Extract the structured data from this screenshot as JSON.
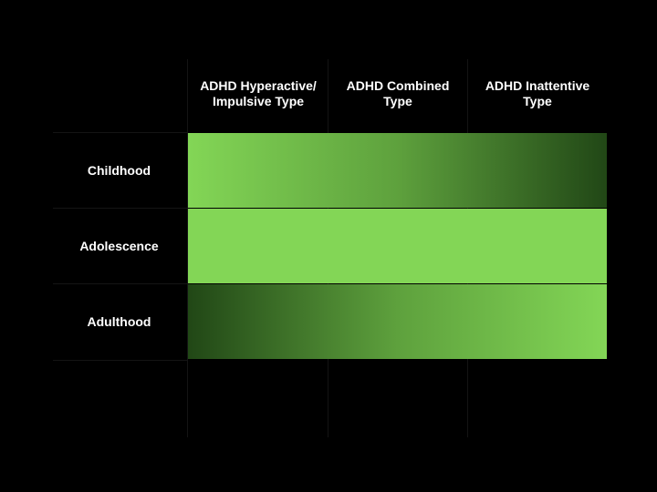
{
  "columns": [
    {
      "label": "ADHD Hyperactive/\nImpulsive Type"
    },
    {
      "label": "ADHD Combined\nType"
    },
    {
      "label": "ADHD Inattentive\nType"
    }
  ],
  "rows": [
    {
      "label": "Childhood",
      "gradient": "light-to-dark"
    },
    {
      "label": "Adolescence",
      "gradient": "solid"
    },
    {
      "label": "Adulthood",
      "gradient": "dark-to-light"
    }
  ],
  "colors": {
    "background": "#000000",
    "light_green": "#83d656",
    "mid_green": "#5ea13d",
    "dark_green": "#214716",
    "text": "#ffffff"
  }
}
